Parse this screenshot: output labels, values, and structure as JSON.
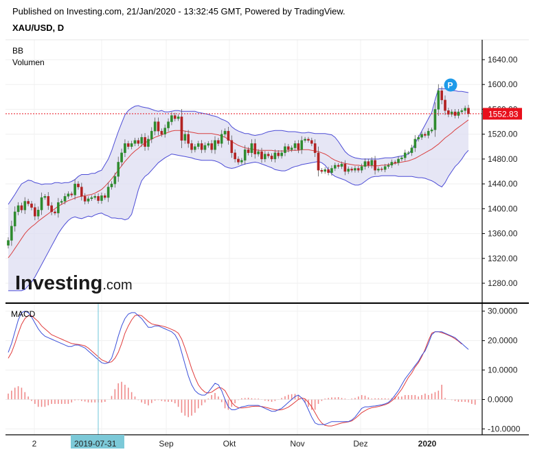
{
  "header": {
    "publish_line": "Published on Investing.com, 21/Jan/2020 - 13:32:45 GMT, Powered by TradingView.",
    "symbol": "XAU/USD, D"
  },
  "logo": {
    "main": "Investing",
    "suffix": ".com"
  },
  "marker": {
    "label": "P"
  },
  "colors": {
    "up": "#2e8b2e",
    "down": "#b22222",
    "band_line": "#4b4bd6",
    "band_fill": "#dedef2",
    "basis": "#d94040",
    "macd": "#3a4fd9",
    "signal": "#e03a3a",
    "hist": "#ef8a8a",
    "last_price": "#e8101c",
    "cursor": "#6ec6d8"
  },
  "chart_data": [
    {
      "type": "candlestick",
      "pane": "price",
      "indicator_labels": [
        "BB",
        "Volumen"
      ],
      "y_ticks": [
        1280,
        1320,
        1360,
        1400,
        1440,
        1480,
        1520,
        1560,
        1600,
        1640
      ],
      "y_tick_labels": [
        "1280.00",
        "1320.00",
        "1360.00",
        "1400.00",
        "1440.00",
        "1480.00",
        "1520.00",
        "1560.00",
        "1600.00",
        "1640.00"
      ],
      "ylim": [
        1248,
        1672
      ],
      "last_price": 1552.83,
      "last_price_label": "1552.83",
      "series": [
        {
          "name": "close",
          "values": [
            1349,
            1372,
            1395,
            1405,
            1398,
            1412,
            1408,
            1402,
            1388,
            1398,
            1418,
            1420,
            1405,
            1395,
            1393,
            1410,
            1412,
            1420,
            1424,
            1422,
            1440,
            1435,
            1420,
            1412,
            1416,
            1418,
            1420,
            1413,
            1421,
            1418,
            1435,
            1440,
            1452,
            1475,
            1490,
            1505,
            1500,
            1505,
            1510,
            1505,
            1515,
            1500,
            1512,
            1525,
            1540,
            1525,
            1520,
            1530,
            1540,
            1550,
            1545,
            1548,
            1510,
            1520,
            1505,
            1495,
            1500,
            1505,
            1495,
            1502,
            1505,
            1495,
            1510,
            1505,
            1520,
            1525,
            1510,
            1490,
            1480,
            1475,
            1478,
            1495,
            1490,
            1505,
            1488,
            1492,
            1480,
            1488,
            1485,
            1480,
            1490,
            1485,
            1490,
            1500,
            1495,
            1498,
            1505,
            1495,
            1510,
            1512,
            1510,
            1505,
            1490,
            1462,
            1460,
            1463,
            1458,
            1465,
            1470,
            1468,
            1472,
            1460,
            1464,
            1462,
            1465,
            1462,
            1468,
            1476,
            1470,
            1478,
            1462,
            1464,
            1463,
            1468,
            1470,
            1475,
            1474,
            1480,
            1482,
            1490,
            1490,
            1498,
            1512,
            1515,
            1520,
            1518,
            1525,
            1527,
            1560,
            1590,
            1575,
            1558,
            1552,
            1556,
            1550,
            1556,
            1558,
            1562,
            1552.83
          ]
        },
        {
          "name": "bb_basis",
          "values": [
            1321,
            1328,
            1336,
            1344,
            1352,
            1360,
            1366,
            1371,
            1375,
            1380,
            1384,
            1388,
            1392,
            1396,
            1400,
            1404,
            1407,
            1410,
            1413,
            1415,
            1417,
            1419,
            1420,
            1421,
            1422,
            1423,
            1425,
            1428,
            1431,
            1436,
            1442,
            1448,
            1455,
            1462,
            1469,
            1476,
            1482,
            1488,
            1493,
            1497,
            1502,
            1506,
            1509,
            1512,
            1515,
            1517,
            1519,
            1521,
            1523,
            1525,
            1526,
            1526,
            1526,
            1525,
            1524,
            1523,
            1522,
            1521,
            1521,
            1521,
            1521,
            1521,
            1520,
            1519,
            1517,
            1515,
            1512,
            1508,
            1505,
            1502,
            1500,
            1498,
            1497,
            1496,
            1495,
            1494,
            1494,
            1494,
            1494,
            1494,
            1493,
            1493,
            1493,
            1493,
            1493,
            1494,
            1494,
            1494,
            1495,
            1495,
            1495,
            1494,
            1493,
            1492,
            1490,
            1488,
            1485,
            1481,
            1478,
            1476,
            1474,
            1473,
            1472,
            1471,
            1470,
            1470,
            1469,
            1469,
            1469,
            1469,
            1469,
            1469,
            1470,
            1470,
            1471,
            1472,
            1473,
            1474,
            1475,
            1476,
            1477,
            1479,
            1481,
            1484,
            1487,
            1490,
            1493,
            1496,
            1500,
            1504,
            1509,
            1514,
            1518,
            1522,
            1527,
            1531,
            1535,
            1539,
            1543
          ]
        },
        {
          "name": "bb_upper",
          "values": [
            1407,
            1415,
            1423,
            1432,
            1440,
            1443,
            1446,
            1445,
            1442,
            1441,
            1439,
            1440,
            1440,
            1440,
            1442,
            1442,
            1441,
            1442,
            1442,
            1444,
            1447,
            1452,
            1455,
            1455,
            1455,
            1457,
            1457,
            1460,
            1462,
            1471,
            1480,
            1493,
            1509,
            1524,
            1538,
            1551,
            1558,
            1562,
            1565,
            1566,
            1564,
            1563,
            1562,
            1560,
            1558,
            1557,
            1558,
            1556,
            1556,
            1557,
            1558,
            1558,
            1557,
            1557,
            1557,
            1557,
            1557,
            1555,
            1554,
            1553,
            1552,
            1550,
            1549,
            1547,
            1544,
            1542,
            1539,
            1532,
            1528,
            1525,
            1523,
            1521,
            1521,
            1519,
            1518,
            1519,
            1520,
            1522,
            1524,
            1525,
            1526,
            1526,
            1526,
            1525,
            1524,
            1524,
            1524,
            1523,
            1522,
            1522,
            1523,
            1522,
            1521,
            1521,
            1521,
            1521,
            1520,
            1519,
            1515,
            1508,
            1500,
            1492,
            1487,
            1484,
            1482,
            1481,
            1480,
            1480,
            1480,
            1480,
            1480,
            1480,
            1481,
            1482,
            1482,
            1482,
            1483,
            1484,
            1485,
            1486,
            1488,
            1495,
            1505,
            1515,
            1525,
            1535,
            1545,
            1555,
            1575,
            1593,
            1593,
            1593,
            1591,
            1590,
            1590,
            1589,
            1589,
            1588,
            1587
          ]
        },
        {
          "name": "bb_lower",
          "values": [
            1268,
            1268,
            1268,
            1268,
            1268,
            1270,
            1276,
            1282,
            1290,
            1300,
            1310,
            1320,
            1330,
            1340,
            1350,
            1360,
            1368,
            1375,
            1381,
            1385,
            1387,
            1385,
            1384,
            1386,
            1388,
            1387,
            1390,
            1392,
            1393,
            1390,
            1388,
            1385,
            1385,
            1384,
            1384,
            1382,
            1384,
            1391,
            1410,
            1430,
            1445,
            1452,
            1456,
            1462,
            1468,
            1474,
            1478,
            1482,
            1485,
            1488,
            1487,
            1486,
            1485,
            1484,
            1483,
            1482,
            1480,
            1479,
            1478,
            1478,
            1478,
            1478,
            1477,
            1475,
            1472,
            1468,
            1466,
            1465,
            1466,
            1468,
            1470,
            1472,
            1473,
            1474,
            1475,
            1474,
            1472,
            1470,
            1468,
            1466,
            1463,
            1462,
            1461,
            1461,
            1463,
            1466,
            1468,
            1469,
            1471,
            1472,
            1473,
            1474,
            1475,
            1476,
            1474,
            1470,
            1463,
            1456,
            1452,
            1450,
            1448,
            1446,
            1443,
            1440,
            1438,
            1438,
            1440,
            1444,
            1448,
            1451,
            1452,
            1452,
            1453,
            1453,
            1453,
            1453,
            1453,
            1452,
            1452,
            1452,
            1452,
            1452,
            1451,
            1450,
            1450,
            1449,
            1447,
            1445,
            1442,
            1438,
            1435,
            1442,
            1452,
            1460,
            1468,
            1473,
            1480,
            1488,
            1494
          ]
        }
      ]
    },
    {
      "type": "line",
      "pane": "indicator",
      "title": "MACD",
      "y_ticks": [
        -10,
        0,
        10,
        20,
        30
      ],
      "y_tick_labels": [
        "-10.0000",
        "0.0000",
        "10.0000",
        "20.0000",
        "30.0000"
      ],
      "ylim": [
        -12,
        32.5
      ],
      "series": [
        {
          "name": "macd",
          "values": [
            16,
            19,
            23,
            27,
            29.5,
            30,
            29.5,
            28,
            26,
            24,
            22.5,
            21.5,
            21,
            20.5,
            20,
            19.5,
            19,
            18.5,
            18,
            18,
            18.5,
            18.5,
            18,
            17.5,
            16.5,
            15.5,
            14.5,
            13.5,
            12.5,
            12.2,
            12.5,
            14,
            17.5,
            21.5,
            25,
            27.5,
            29,
            29.5,
            29.5,
            28.5,
            27.5,
            26,
            24.5,
            24.5,
            25,
            25,
            24.5,
            24,
            23.5,
            23,
            22,
            20,
            16,
            12,
            8,
            5,
            3,
            2,
            1.5,
            1.5,
            2.5,
            4,
            5.5,
            5,
            3,
            0,
            -2.5,
            -3.5,
            -3.5,
            -3,
            -2.5,
            -2.3,
            -2,
            -2,
            -2,
            -2,
            -2.5,
            -3,
            -3.5,
            -4,
            -4,
            -3.5,
            -3,
            -2,
            -1,
            0,
            1,
            1.5,
            0.5,
            -1,
            -3.5,
            -6,
            -8,
            -8.5,
            -8.5,
            -8.5,
            -8,
            -7.5,
            -7.5,
            -7.5,
            -7.5,
            -7.5,
            -7.5,
            -7,
            -6,
            -4.5,
            -3,
            -2.5,
            -2.5,
            -2.3,
            -2.2,
            -2,
            -1.8,
            -1.5,
            -1,
            0,
            1.5,
            3,
            5,
            7,
            8.5,
            10,
            11.5,
            13,
            15,
            16.5,
            19,
            22,
            23,
            23,
            23,
            22.5,
            22,
            21.5,
            21,
            20,
            19,
            18,
            17
          ]
        },
        {
          "name": "signal",
          "values": [
            14,
            16,
            19,
            22.5,
            25.5,
            27.5,
            28.5,
            28.5,
            27.5,
            26.5,
            25,
            24,
            23,
            22,
            21.5,
            21,
            20.5,
            20,
            19.5,
            19,
            18.8,
            18.7,
            18.5,
            18.2,
            17.5,
            16.5,
            15.5,
            14.5,
            13.5,
            13,
            12.5,
            12.8,
            14,
            16,
            19,
            22.5,
            25,
            27,
            28.5,
            28.7,
            28.5,
            27.5,
            26.5,
            25.7,
            25.4,
            25.2,
            25,
            24.7,
            24.3,
            23.8,
            23.3,
            22.5,
            20.5,
            17.5,
            14,
            10.5,
            7.5,
            5,
            3.5,
            2.5,
            2.2,
            2.5,
            3.3,
            4,
            3.9,
            3,
            1,
            -1,
            -2.2,
            -2.8,
            -2.9,
            -2.8,
            -2.6,
            -2.4,
            -2.3,
            -2.3,
            -2.4,
            -2.6,
            -2.9,
            -3.2,
            -3.5,
            -3.6,
            -3.5,
            -3.1,
            -2.6,
            -1.8,
            -0.9,
            0,
            0.5,
            0.2,
            -1,
            -2.5,
            -4.5,
            -6.5,
            -8,
            -8.8,
            -9,
            -9,
            -8.7,
            -8.3,
            -8,
            -7.8,
            -7.6,
            -7.3,
            -6.5,
            -5.5,
            -4.5,
            -3.8,
            -3.2,
            -2.8,
            -2.6,
            -2.4,
            -2.1,
            -1.8,
            -1.3,
            -0.5,
            0.5,
            2,
            3.5,
            5.5,
            7.5,
            9,
            11,
            12.5,
            14.5,
            17,
            20,
            22.5,
            23,
            23,
            22.7,
            22.3,
            21.8,
            21.3,
            20.6,
            19.8,
            18.8
          ]
        },
        {
          "name": "histogram",
          "values": [
            2,
            3,
            4,
            4.5,
            4,
            2.5,
            1,
            -0.5,
            -1.5,
            -2.5,
            -2.5,
            -2.5,
            -2,
            -1.5,
            -1.5,
            -1.5,
            -1.5,
            -1.5,
            -1.5,
            -1,
            -0.3,
            -0.2,
            -0.5,
            -0.7,
            -1,
            -1,
            -1,
            -1,
            -1,
            -0.8,
            0,
            1.2,
            3.5,
            5.5,
            6,
            5,
            4,
            2.5,
            1,
            -0.2,
            -1,
            -1.5,
            -2,
            -1.2,
            -0.4,
            -0.2,
            -0.5,
            -0.7,
            -0.8,
            -0.8,
            -1.3,
            -2.5,
            -4.5,
            -5.5,
            -6,
            -5.5,
            -4.5,
            -3,
            -2,
            -1,
            0.3,
            1.5,
            2.2,
            1,
            -0.9,
            -3,
            -3.5,
            -2.5,
            -1.3,
            -0.2,
            0.4,
            0.5,
            0.6,
            0.4,
            0.3,
            0.3,
            -0.1,
            -0.4,
            -0.6,
            -0.8,
            -0.5,
            0.1,
            0.5,
            1.1,
            1.6,
            1.8,
            1.9,
            1.5,
            0,
            -1.2,
            -2.5,
            -3.5,
            -3.5,
            -1.5,
            -0.5,
            0.3,
            0.5,
            0.7,
            0.7,
            0.8,
            0.5,
            0.3,
            0.1,
            0.3,
            0.5,
            1,
            1.5,
            1.3,
            0.7,
            0.3,
            0.4,
            0.4,
            0.4,
            0.4,
            0.3,
            0.5,
            1,
            1,
            1,
            1.5,
            1.5,
            1.5,
            1.5,
            1,
            1.5,
            2,
            1.5,
            2,
            2.5,
            3,
            5,
            0.5,
            0,
            -0.2,
            -0.5,
            -0.8,
            -0.8,
            -0.8,
            -1,
            -1.5,
            -1.8
          ]
        }
      ]
    },
    {
      "type": "time_axis",
      "tick_labels": [
        "2",
        "Sep",
        "Okt",
        "Nov",
        "Dez",
        "2020"
      ],
      "bold_tick": "2020",
      "cursor_label": "2019-07-31"
    }
  ]
}
